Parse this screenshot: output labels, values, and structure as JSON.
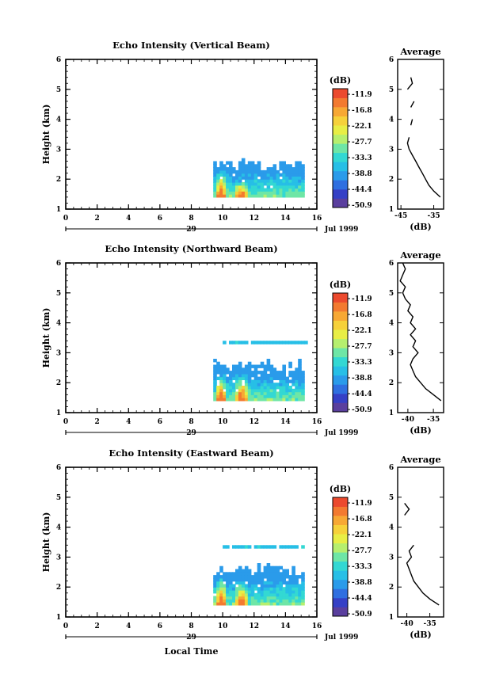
{
  "figure": {
    "xlabel_bottom": "Local Time"
  },
  "cmap": [
    "#5a3f9e",
    "#3540c6",
    "#2f6fe0",
    "#2a9bea",
    "#27bfe6",
    "#33d8d3",
    "#6ee6a6",
    "#b6ef6e",
    "#e8ee45",
    "#f6d13a",
    "#f7a834",
    "#f37a30",
    "#ec4a2e"
  ],
  "colorbar": {
    "unit": "(dB)",
    "ticks": [
      "-11.9",
      "-16.8",
      "-22.1",
      "-27.7",
      "-33.3",
      "-38.8",
      "-44.4",
      "-50.9"
    ]
  },
  "chart_data": [
    {
      "type": "heatmap",
      "title": "Echo Intensity (Vertical Beam)",
      "ylabel": "Height (km)",
      "xlim": [
        0,
        16
      ],
      "ylim": [
        1,
        6
      ],
      "xticks": [
        "0",
        "2",
        "4",
        "6",
        "8",
        "10",
        "12",
        "14",
        "16"
      ],
      "yticks": [
        "1",
        "2",
        "3",
        "4",
        "5",
        "6"
      ],
      "date_day": "29",
      "date_label": "Jul 1999",
      "data_region": {
        "t_start": 9.4,
        "t_end": 15.2,
        "h_base": 1.4,
        "h_top": 2.5,
        "extra_layer_h": null
      },
      "peaks": [
        {
          "t": 9.8,
          "top": 2.4
        },
        {
          "t": 11.1,
          "top": 1.9
        }
      ],
      "profile": {
        "title": "Average",
        "xlabel": "(dB)",
        "xticks": [
          "-45",
          "-35"
        ],
        "xlim": [
          -46,
          -32
        ],
        "h": [
          1.4,
          1.6,
          1.8,
          2.0,
          2.2,
          2.4,
          2.6,
          2.8,
          3.0,
          3.2,
          3.4,
          3.8,
          4.0,
          4.4,
          4.6,
          5.0,
          5.2,
          5.4
        ],
        "db": [
          -33,
          -35,
          -36.5,
          -37.5,
          -38.5,
          -39.5,
          -40.5,
          -41.5,
          -42.5,
          -43,
          -42.5,
          -42,
          -41.5,
          -42,
          -41,
          -43,
          -41.5,
          -42
        ]
      }
    },
    {
      "type": "heatmap",
      "title": "Echo Intensity (Northward Beam)",
      "ylabel": "Height (km)",
      "xlim": [
        0,
        16
      ],
      "ylim": [
        1,
        6
      ],
      "xticks": [
        "0",
        "2",
        "4",
        "6",
        "8",
        "10",
        "12",
        "14",
        "16"
      ],
      "yticks": [
        "1",
        "2",
        "3",
        "4",
        "5",
        "6"
      ],
      "date_day": "29",
      "date_label": "Jul 1999",
      "data_region": {
        "t_start": 9.4,
        "t_end": 15.2,
        "h_base": 1.4,
        "h_top": 2.6,
        "extra_layer_h": 3.3
      },
      "peaks": [
        {
          "t": 9.8,
          "top": 2.3
        },
        {
          "t": 11.1,
          "top": 2.4
        }
      ],
      "profile": {
        "title": "Average",
        "xlabel": "(dB)",
        "xticks": [
          "-40",
          "-35"
        ],
        "xlim": [
          -42,
          -33
        ],
        "h": [
          1.4,
          1.6,
          1.8,
          2.0,
          2.2,
          2.4,
          2.6,
          2.8,
          3.0,
          3.2,
          3.4,
          3.6,
          3.8,
          4.0,
          4.2,
          4.4,
          4.6,
          4.8,
          5.0,
          5.2,
          5.4,
          5.6,
          5.8,
          6.0
        ],
        "db": [
          -33.5,
          -35,
          -36.5,
          -37.5,
          -38.5,
          -39,
          -39.5,
          -39,
          -38,
          -39,
          -38.5,
          -39.5,
          -38.5,
          -39.5,
          -39,
          -40,
          -39.5,
          -40.5,
          -41,
          -40.5,
          -41.5,
          -41,
          -40.5,
          -41
        ]
      }
    },
    {
      "type": "heatmap",
      "title": "Echo Intensity (Eastward Beam)",
      "ylabel": "Height (km)",
      "xlim": [
        0,
        16
      ],
      "ylim": [
        1,
        6
      ],
      "xticks": [
        "0",
        "2",
        "4",
        "6",
        "8",
        "10",
        "12",
        "14",
        "16"
      ],
      "yticks": [
        "1",
        "2",
        "3",
        "4",
        "5",
        "6"
      ],
      "date_day": "29",
      "date_label": "Jul 1999",
      "data_region": {
        "t_start": 9.4,
        "t_end": 15.2,
        "h_base": 1.4,
        "h_top": 2.6,
        "extra_layer_h": 3.3
      },
      "peaks": [
        {
          "t": 9.8,
          "top": 2.4
        },
        {
          "t": 11.1,
          "top": 2.2
        }
      ],
      "profile": {
        "title": "Average",
        "xlabel": "(dB)",
        "xticks": [
          "-40",
          "-35"
        ],
        "xlim": [
          -42,
          -32
        ],
        "h": [
          1.4,
          1.6,
          1.8,
          2.0,
          2.2,
          2.4,
          2.6,
          2.8,
          3.0,
          3.2,
          3.4,
          4.4,
          4.6,
          4.8
        ],
        "db": [
          -33,
          -35,
          -36.5,
          -37.5,
          -38.5,
          -39,
          -39.5,
          -40,
          -39,
          -39.5,
          -38.5,
          -40.5,
          -39.5,
          -40.5
        ]
      }
    }
  ]
}
